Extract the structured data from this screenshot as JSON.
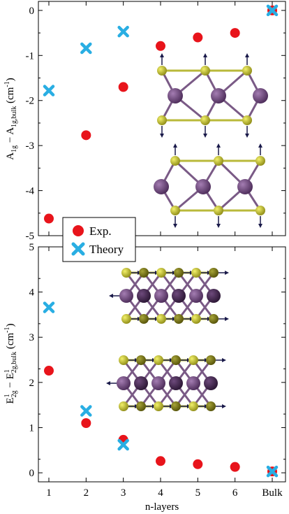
{
  "colors": {
    "experiment": "#e8141b",
    "theory": "#29aee3",
    "metal_atom": "#6a3f7a",
    "metal_atom_dark": "#3a2244",
    "chalcogen_atom": "#c9c829",
    "chalcogen_atom_dark": "#7a7614",
    "bond_metal": "#7a5a86",
    "bond_chalcogen": "#b9b93a",
    "arrow": "#1a1a4a"
  },
  "legend": {
    "items": [
      {
        "label": "Exp.",
        "marker": "circle",
        "color": "#e8141b"
      },
      {
        "label": "Theory",
        "marker": "x",
        "color": "#29aee3"
      }
    ],
    "placement": "between-panels-left"
  },
  "xlabel": "n-layers",
  "chart_data": [
    {
      "type": "scatter",
      "panel": "top",
      "ylabel_main": "A",
      "ylabel_sub1": "1g",
      "ylabel_mid": " − A",
      "ylabel_sub2": "1g,bulk",
      "ylabel_unit_pre": " (cm",
      "ylabel_unit_sup": "-1",
      "ylabel_unit_post": ")",
      "x_categories": [
        "1",
        "2",
        "3",
        "4",
        "5",
        "6",
        "Bulk"
      ],
      "ylim": [
        -5,
        0.2
      ],
      "yticks": [
        0,
        -1,
        -2,
        -3,
        -4,
        -5
      ],
      "series": [
        {
          "name": "Exp.",
          "marker": "circle",
          "x": [
            1,
            2,
            3,
            4,
            5,
            6,
            7
          ],
          "y": [
            -4.62,
            -2.77,
            -1.7,
            -0.79,
            -0.6,
            -0.5,
            0.0
          ]
        },
        {
          "name": "Theory",
          "marker": "x",
          "x": [
            1,
            2,
            3,
            7
          ],
          "y": [
            -1.78,
            -0.84,
            -0.47,
            0.0
          ]
        }
      ],
      "inset": "A1g vibrational mode: stacked layers with out-of-plane chalcogen displacement arrows"
    },
    {
      "type": "scatter",
      "panel": "bottom",
      "ylabel_main": "E",
      "ylabel_sup1": "1",
      "ylabel_sub1": "2g",
      "ylabel_mid": " − E",
      "ylabel_sup2": "1",
      "ylabel_sub2": "2g,bulk",
      "ylabel_unit_pre": " (cm",
      "ylabel_unit_sup": "-1",
      "ylabel_unit_post": ")",
      "x_categories": [
        "1",
        "2",
        "3",
        "4",
        "5",
        "6",
        "Bulk"
      ],
      "ylim": [
        -0.2,
        5
      ],
      "yticks": [
        0,
        1,
        2,
        3,
        4,
        5
      ],
      "series": [
        {
          "name": "Exp.",
          "marker": "circle",
          "x": [
            1,
            2,
            3,
            4,
            5,
            6,
            7
          ],
          "y": [
            2.26,
            1.1,
            0.73,
            0.26,
            0.19,
            0.13,
            0.03
          ]
        },
        {
          "name": "Theory",
          "marker": "x",
          "x": [
            1,
            2,
            3,
            7
          ],
          "y": [
            3.66,
            1.37,
            0.62,
            0.03
          ]
        }
      ],
      "inset": "E12g vibrational mode: stacked layers with in-plane displacement arrows"
    }
  ]
}
